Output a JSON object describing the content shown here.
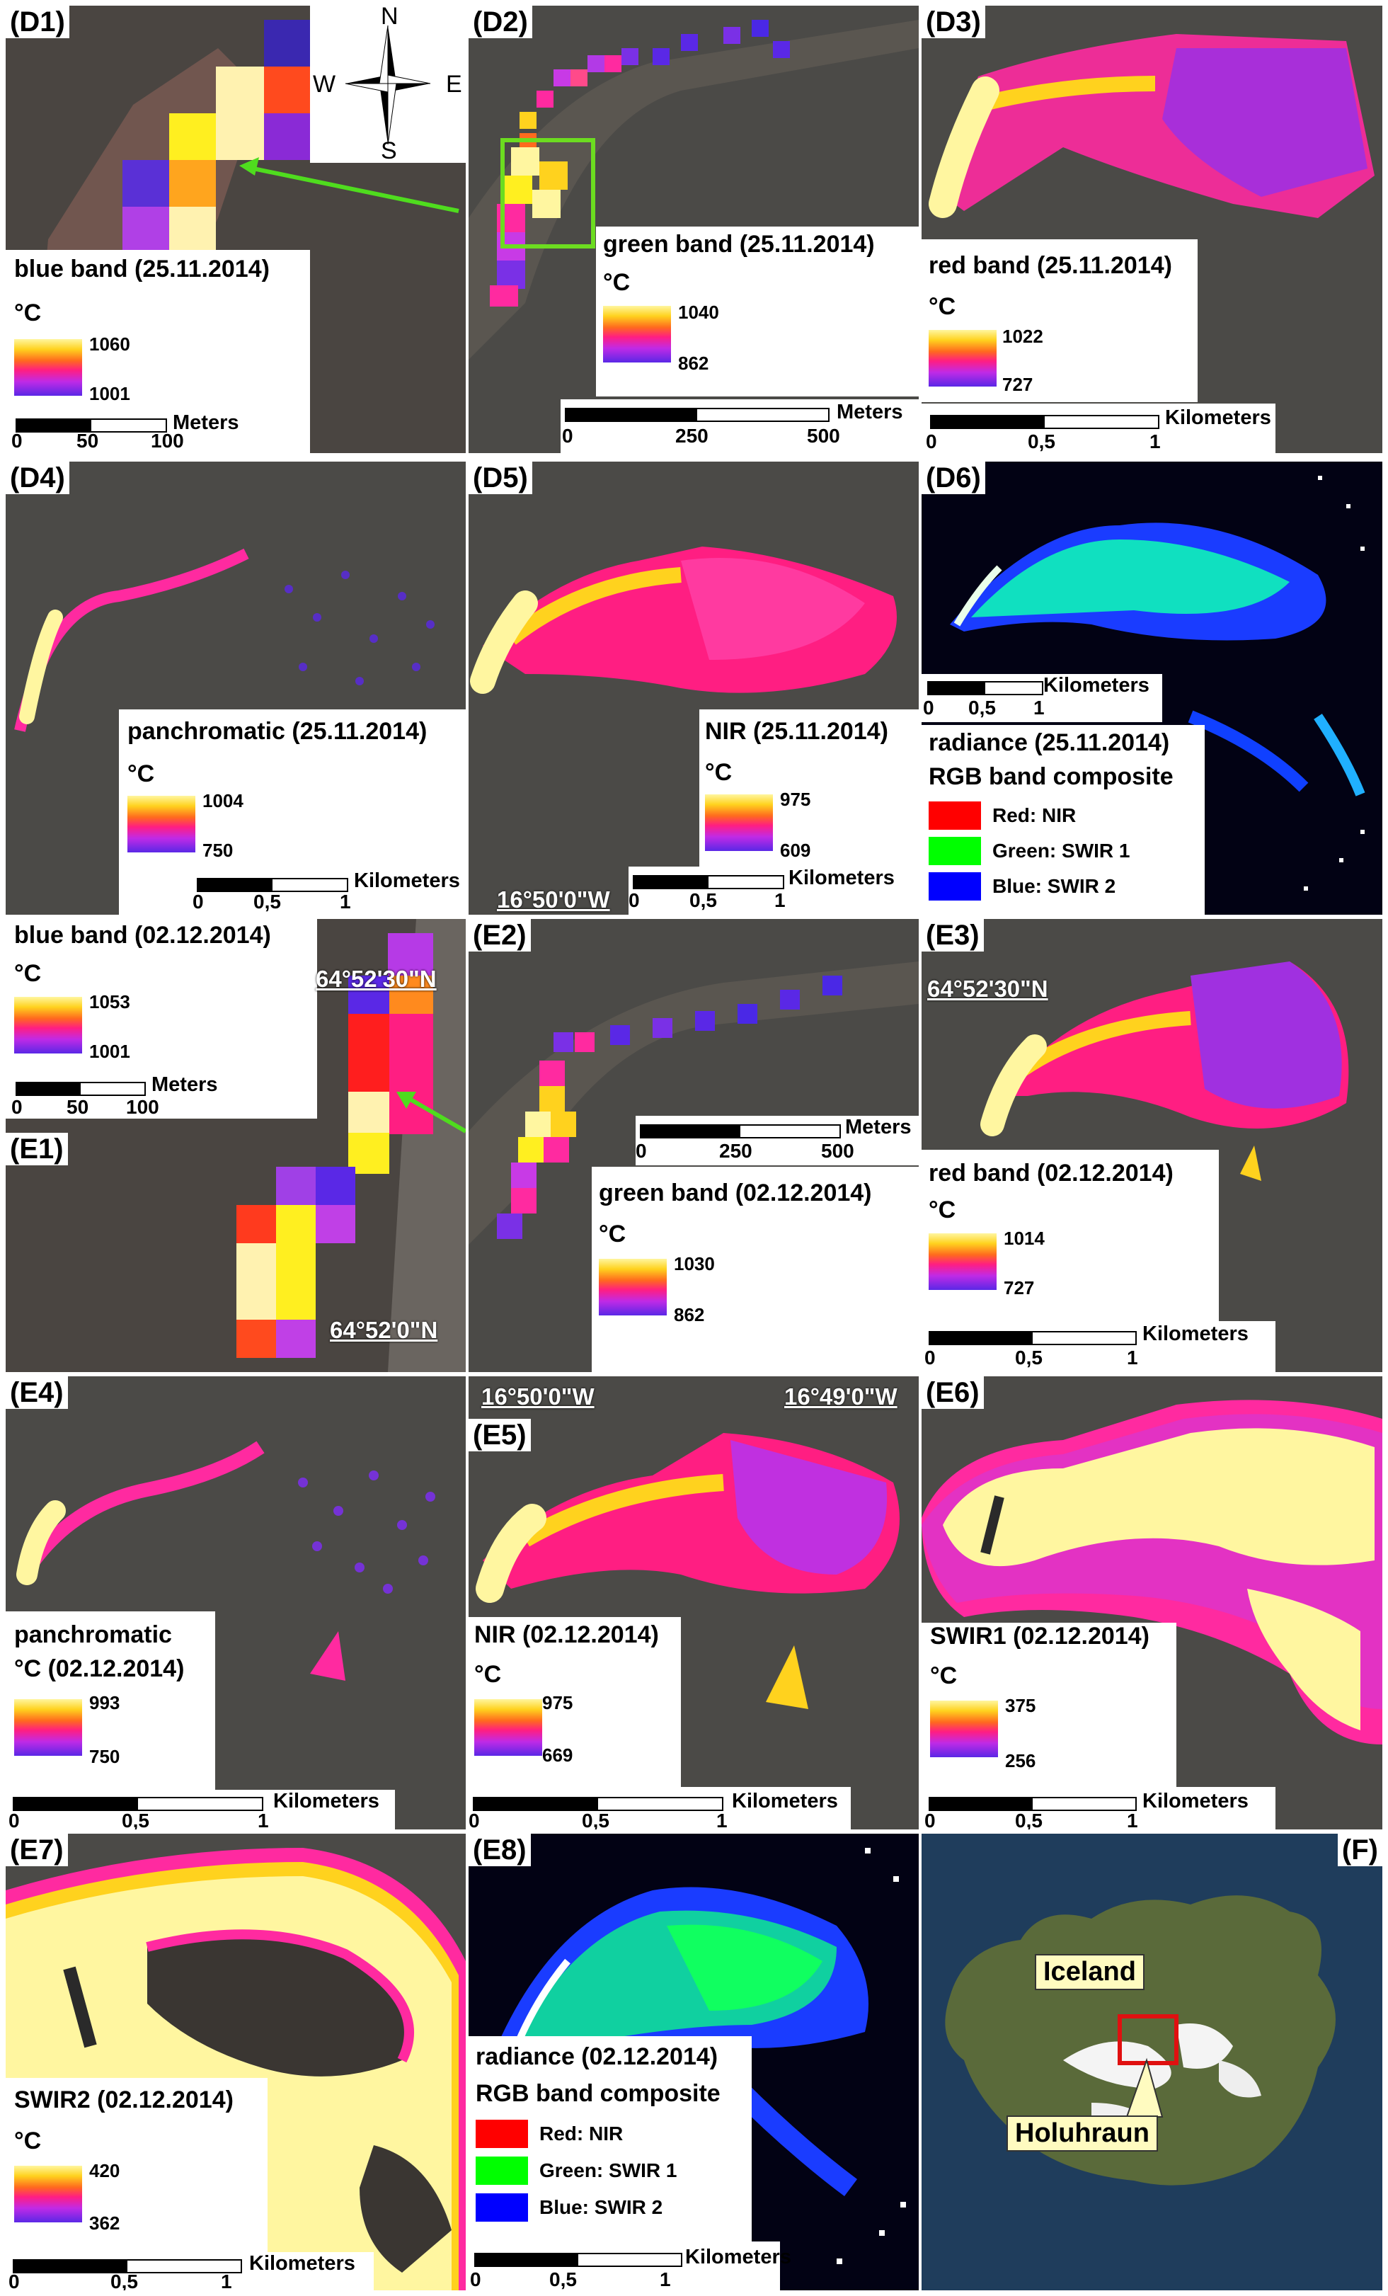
{
  "panels": {
    "d1": {
      "label": "(D1)",
      "title": "blue band (25.11.2014)",
      "unit": "°C",
      "max": "1060",
      "min": "1001",
      "scale_unit": "Meters",
      "ticks": [
        "0",
        "50",
        "100"
      ]
    },
    "d2": {
      "label": "(D2)",
      "title": "green band (25.11.2014)",
      "unit": "°C",
      "max": "1040",
      "min": "862",
      "scale_unit": "Meters",
      "ticks": [
        "0",
        "250",
        "500"
      ]
    },
    "d3": {
      "label": "(D3)",
      "title": "red band (25.11.2014)",
      "unit": "°C",
      "max": "1022",
      "min": "727",
      "scale_unit": "Kilometers",
      "ticks": [
        "0",
        "0,5",
        "1"
      ]
    },
    "d4": {
      "label": "(D4)",
      "title": "panchromatic (25.11.2014)",
      "unit": "°C",
      "max": "1004",
      "min": "750",
      "scale_unit": "Kilometers",
      "ticks": [
        "0",
        "0,5",
        "1"
      ]
    },
    "d5": {
      "label": "(D5)",
      "title": "NIR (25.11.2014)",
      "unit": "°C",
      "max": "975",
      "min": "609",
      "scale_unit": "Kilometers",
      "ticks": [
        "0",
        "0,5",
        "1"
      ],
      "coord": "16°50'0\"W"
    },
    "d6": {
      "label": "(D6)",
      "title": "radiance (25.11.2014)",
      "subtitle": "RGB band composite",
      "legend": [
        {
          "name": "Red:   NIR",
          "color": "#ff0000"
        },
        {
          "name": "Green: SWIR 1",
          "color": "#00ff00"
        },
        {
          "name": "Blue:   SWIR 2",
          "color": "#0000ff"
        }
      ],
      "scale_unit": "Kilometers",
      "ticks": [
        "0",
        "0,5",
        "1"
      ]
    },
    "e1": {
      "label": "(E1)",
      "title": "blue band (02.12.2014)",
      "unit": "°C",
      "max": "1053",
      "min": "1001",
      "scale_unit": "Meters",
      "ticks": [
        "0",
        "50",
        "100"
      ],
      "coord_top": "64°52'30\"N",
      "coord_bottom": "64°52'0\"N"
    },
    "e2": {
      "label": "(E2)",
      "title": "green band (02.12.2014)",
      "unit": "°C",
      "max": "1030",
      "min": "862",
      "scale_unit": "Meters",
      "ticks": [
        "0",
        "250",
        "500"
      ]
    },
    "e3": {
      "label": "(E3)",
      "title": "red band (02.12.2014)",
      "unit": "°C",
      "max": "1014",
      "min": "727",
      "scale_unit": "Kilometers",
      "ticks": [
        "0",
        "0,5",
        "1"
      ],
      "coord": "64°52'30\"N"
    },
    "e4": {
      "label": "(E4)",
      "title": "panchromatic",
      "title2": "°C (02.12.2014)",
      "max": "993",
      "min": "750",
      "scale_unit": "Kilometers",
      "ticks": [
        "0",
        "0,5",
        "1"
      ]
    },
    "e5": {
      "label": "(E5)",
      "title": "NIR (02.12.2014)",
      "unit": "°C",
      "max": "975",
      "min": "669",
      "scale_unit": "Kilometers",
      "ticks": [
        "0",
        "0,5",
        "1"
      ],
      "coord_left": "16°50'0\"W",
      "coord_right": "16°49'0\"W"
    },
    "e6": {
      "label": "(E6)",
      "title": "SWIR1 (02.12.2014)",
      "unit": "°C",
      "max": "375",
      "min": "256",
      "scale_unit": "Kilometers",
      "ticks": [
        "0",
        "0,5",
        "1"
      ]
    },
    "e7": {
      "label": "(E7)",
      "title": "SWIR2 (02.12.2014)",
      "unit": "°C",
      "max": "420",
      "min": "362",
      "scale_unit": "Kilometers",
      "ticks": [
        "0",
        "0,5",
        "1"
      ]
    },
    "e8": {
      "label": "(E8)",
      "title": "radiance (02.12.2014)",
      "subtitle": "RGB band composite",
      "legend": [
        {
          "name": "Red:   NIR",
          "color": "#ff0000"
        },
        {
          "name": "Green: SWIR 1",
          "color": "#00ff00"
        },
        {
          "name": "Blue:   SWIR 2",
          "color": "#0000ff"
        }
      ],
      "scale_unit": "Kilometers",
      "ticks": [
        "0",
        "0,5",
        "1"
      ]
    },
    "f": {
      "label": "(F)",
      "country": "Iceland",
      "site": "Holuhraun"
    }
  },
  "compass": {
    "n": "N",
    "s": "S",
    "e": "E",
    "w": "W"
  },
  "colors": {
    "lava_hot": "#fff6a0",
    "lava_warm": "#ffd21e",
    "lava_mid": "#ff1e82",
    "lava_cool": "#5a28e6",
    "arrow": "#4fdc1e",
    "highlight": "#6cdc20",
    "site_box": "#e01010"
  }
}
